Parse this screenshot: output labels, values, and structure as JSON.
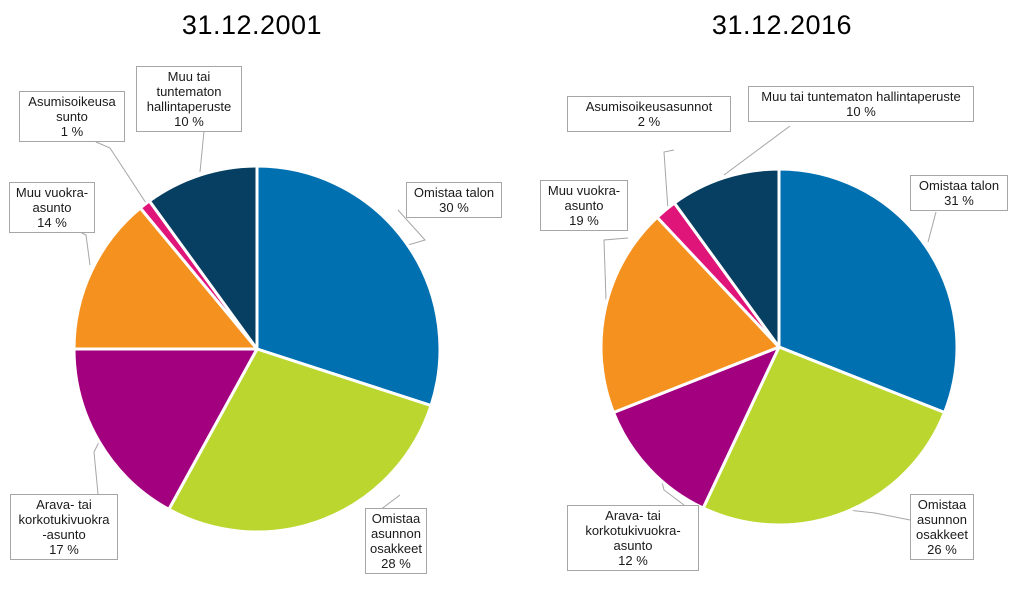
{
  "chart_data": [
    {
      "type": "pie",
      "title": "31.12.2001",
      "slices": [
        {
          "name": "Omistaa talon",
          "value": 30,
          "label": "30 %",
          "color": "#0070b0"
        },
        {
          "name": "Omistaa asunnon osakkeet",
          "value": 28,
          "label": "28 %",
          "color": "#bcd630"
        },
        {
          "name": "Arava- tai korkotukivuokra -asunto",
          "value": 17,
          "label": "17 %",
          "color": "#a3007f"
        },
        {
          "name": "Muu vuokra-asunto",
          "value": 14,
          "label": "14 %",
          "color": "#f5911e"
        },
        {
          "name": "Asumisoikeusasunto",
          "value": 1,
          "label": "1 %",
          "color": "#e0157a"
        },
        {
          "name": "Muu tai tuntematon hallintaperuste",
          "value": 10,
          "label": "10 %",
          "color": "#073f63"
        }
      ],
      "label_lines": [
        [
          "Omistaa talon",
          "30 %"
        ],
        [
          "Omistaa",
          "asunnon",
          "osakkeet",
          "28 %"
        ],
        [
          "Arava- tai",
          "korkotukivuokra",
          "-asunto",
          "17 %"
        ],
        [
          "Muu vuokra-",
          "asunto",
          "14 %"
        ],
        [
          "Asumisoikeusa",
          "sunto",
          "1 %"
        ],
        [
          "Muu tai",
          "tuntematon",
          "hallintaperuste",
          "10 %"
        ]
      ]
    },
    {
      "type": "pie",
      "title": "31.12.2016",
      "slices": [
        {
          "name": "Omistaa talon",
          "value": 31,
          "label": "31 %",
          "color": "#0070b0"
        },
        {
          "name": "Omistaa asunnon osakkeet",
          "value": 26,
          "label": "26 %",
          "color": "#bcd630"
        },
        {
          "name": "Arava- tai korkotukivuokra-asunto",
          "value": 12,
          "label": "12 %",
          "color": "#a3007f"
        },
        {
          "name": "Muu vuokra-asunto",
          "value": 19,
          "label": "19 %",
          "color": "#f5911e"
        },
        {
          "name": "Asumisoikeusasunnot",
          "value": 2,
          "label": "2 %",
          "color": "#e0157a"
        },
        {
          "name": "Muu tai tuntematon hallintaperuste",
          "value": 10,
          "label": "10 %",
          "color": "#073f63"
        }
      ],
      "label_lines": [
        [
          "Omistaa talon",
          "31 %"
        ],
        [
          "Omistaa",
          "asunnon",
          "osakkeet",
          "26 %"
        ],
        [
          "Arava- tai",
          "korkotukivuokra-",
          "asunto",
          "12 %"
        ],
        [
          "Muu vuokra-",
          "asunto",
          "19 %"
        ],
        [
          "Asumisoikeusasunnot",
          "2 %"
        ],
        [
          "Muu tai tuntematon hallintaperuste",
          "10 %"
        ]
      ]
    }
  ]
}
